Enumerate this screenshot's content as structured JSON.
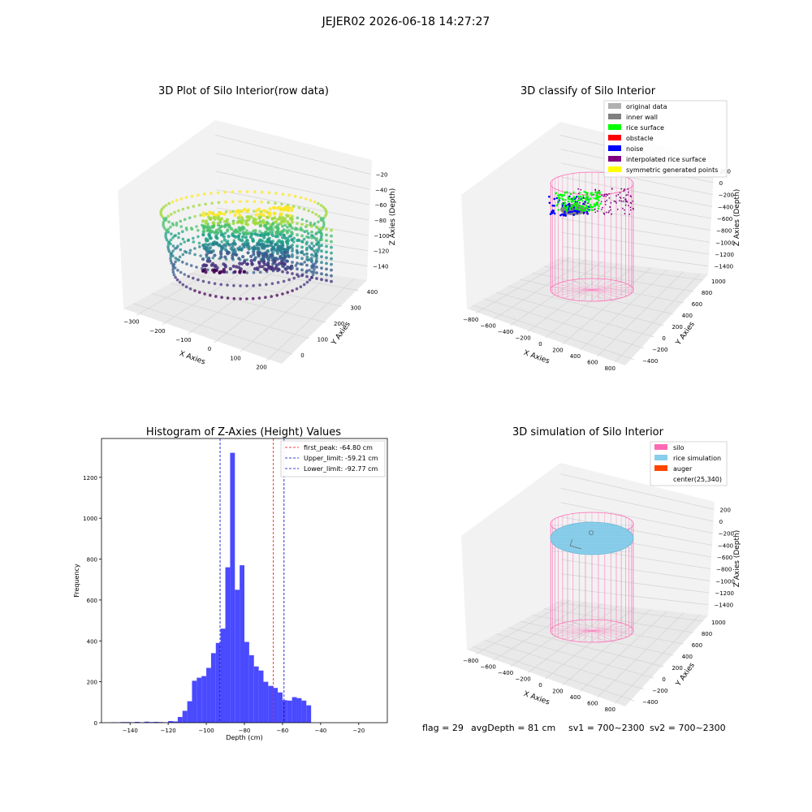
{
  "figure": {
    "suptitle": "JEJER02 2026-06-18 14:27:27",
    "status_line": {
      "flag": "flag = 29",
      "avg_depth": "avgDepth = 81 cm",
      "sv1": "sv1 = 700~2300",
      "sv2": "sv2 = 700~2300"
    }
  },
  "colors": {
    "histogram_bar": "#4a4aff",
    "first_peak_line": "#ff0000",
    "limit_lines": "#0000cc",
    "silo": "#ff69b4",
    "rice_simulation": "#87ceeb",
    "auger": "#ff4500",
    "original_data": "#b0b0b0",
    "inner_wall": "#808080",
    "rice_surface": "#00ff00",
    "obstacle": "#ff0000",
    "noise": "#0000ff",
    "interpolated_rice_surface": "#800080",
    "symmetric_generated_points": "#ffff00"
  },
  "chart_data": [
    {
      "type": "scatter",
      "title": "3D Plot of Silo Interior(row data)",
      "xlabel": "X Axies",
      "ylabel": "Y Axies",
      "zlabel": "Z Axies (Depth)",
      "x_ticks": [
        "−300",
        "−200",
        "−100",
        "0",
        "100",
        "200"
      ],
      "y_ticks": [
        "0",
        "100",
        "200",
        "300",
        "400"
      ],
      "z_ticks": [
        "−20",
        "−40",
        "−60",
        "−80",
        "−100",
        "−120",
        "−140"
      ],
      "xlim": [
        -330,
        210
      ],
      "ylim": [
        -30,
        430
      ],
      "zlim": [
        -155,
        -10
      ],
      "colormap": "viridis"
    },
    {
      "type": "scatter",
      "title": "3D classify of Silo Interior",
      "xlabel": "X Axies",
      "ylabel": "Y Axies",
      "zlabel": "Z Axies (Depth)",
      "x_ticks": [
        "−800",
        "−600",
        "−400",
        "−200",
        "0",
        "200",
        "400",
        "600",
        "800"
      ],
      "y_ticks": [
        "−400",
        "−200",
        "0",
        "200",
        "400",
        "600",
        "800",
        "1000"
      ],
      "z_ticks": [
        "200",
        "0",
        "−200",
        "−400",
        "−600",
        "−800",
        "−1000",
        "−1200",
        "−1400"
      ],
      "legend": [
        "original data",
        "inner wall",
        "rice surface",
        "obstacle",
        "noise",
        "interpolated rice surface",
        "symmetric generated points"
      ],
      "legend_placement": "top-right"
    },
    {
      "type": "bar",
      "title": "Histogram of Z-Axies (Height) Values",
      "xlabel": "Depth (cm)",
      "ylabel": "Frequency",
      "xlim": [
        -155,
        -5
      ],
      "ylim": [
        0,
        1390
      ],
      "x_ticks": [
        -140,
        -120,
        -100,
        -80,
        -60,
        -40,
        -20
      ],
      "y_ticks": [
        0,
        200,
        400,
        600,
        800,
        1000,
        1200
      ],
      "bin_start": -150,
      "bin_width": 2.5,
      "values": [
        2,
        1,
        3,
        3,
        2,
        4,
        2,
        5,
        3,
        4,
        3,
        2,
        8,
        6,
        28,
        58,
        105,
        205,
        220,
        228,
        268,
        340,
        390,
        460,
        760,
        1320,
        650,
        770,
        395,
        330,
        275,
        255,
        200,
        180,
        170,
        148,
        110,
        108,
        125,
        120,
        108,
        85
      ],
      "vlines": [
        {
          "label": "first_peak: -64.80 cm",
          "x": -64.8
        },
        {
          "label": "Upper_limit: -59.21 cm",
          "x": -59.21
        },
        {
          "label": "Lower_limit: -92.77 cm",
          "x": -92.77
        }
      ],
      "legend_placement": "top-right"
    },
    {
      "type": "scatter",
      "title": "3D simulation of Silo Interior",
      "xlabel": "X Axies",
      "ylabel": "Y Axies",
      "zlabel": "Z Axies (Depth)",
      "x_ticks": [
        "−800",
        "−600",
        "−400",
        "−200",
        "0",
        "200",
        "400",
        "600",
        "800"
      ],
      "y_ticks": [
        "−400",
        "−200",
        "0",
        "200",
        "400",
        "600",
        "800",
        "1000"
      ],
      "z_ticks": [
        "200",
        "0",
        "−200",
        "−400",
        "−600",
        "−800",
        "−1000",
        "−1200",
        "−1400"
      ],
      "legend": [
        "silo",
        "rice simulation",
        "auger",
        "center(25,340)"
      ],
      "legend_placement": "top-right"
    }
  ]
}
